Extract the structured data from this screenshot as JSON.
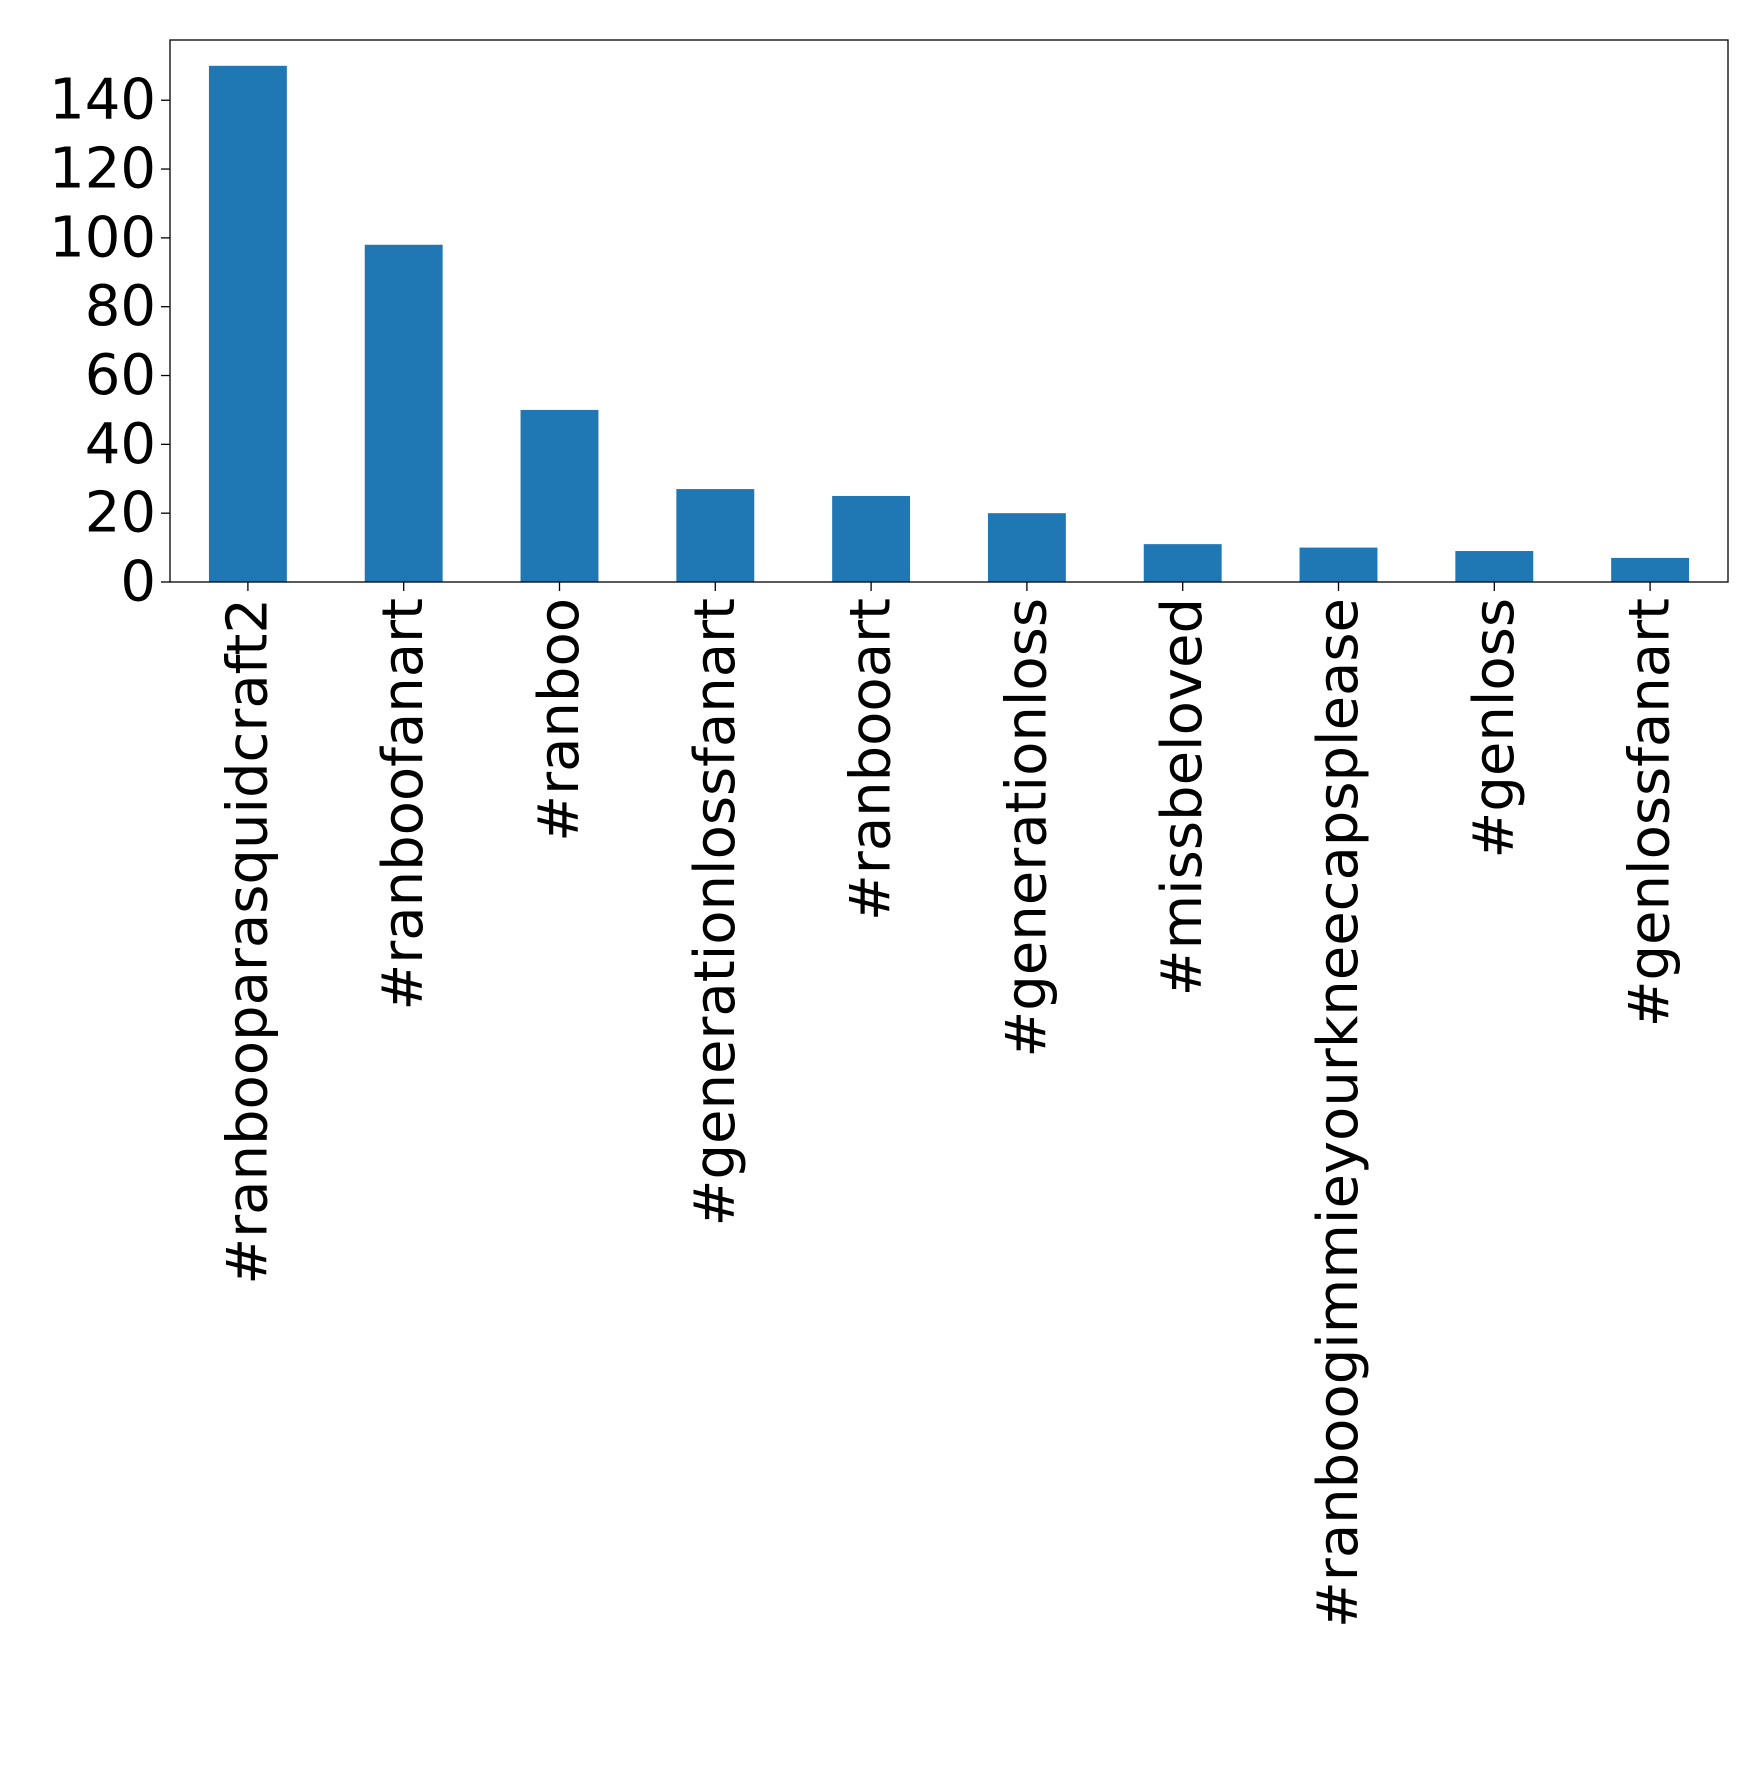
{
  "chart_data": {
    "type": "bar",
    "title": "",
    "xlabel": "",
    "ylabel": "",
    "categories": [
      "#ranbooparasquidcraft2",
      "#ranboofanart",
      "#ranboo",
      "#generationlossfanart",
      "#ranbooart",
      "#generationloss",
      "#missbeloved",
      "#ranboogimmieyourkneecapsplease",
      "#genloss",
      "#genlossfanart"
    ],
    "values": [
      150,
      98,
      50,
      27,
      25,
      20,
      11,
      10,
      9,
      7
    ],
    "ylim": [
      0,
      157.5
    ],
    "yticks": [
      0,
      20,
      40,
      60,
      80,
      100,
      120,
      140
    ],
    "bar_color": "#1f77b4",
    "grid": false,
    "legend": "none"
  }
}
